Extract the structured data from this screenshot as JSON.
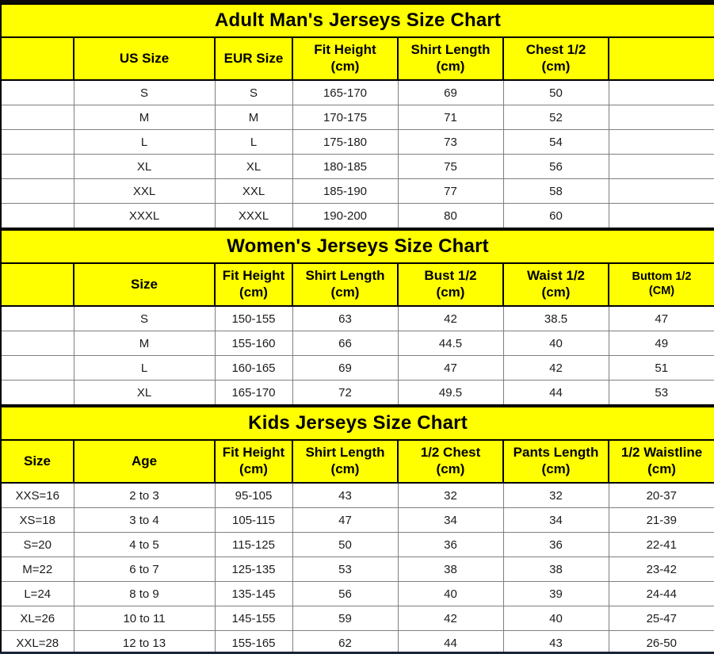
{
  "colors": {
    "header_bg": "#FFFF00",
    "title_text": "#000000",
    "grid_line": "#7F7F7F",
    "section_border": "#000000",
    "bottom_bar": "#1A2438",
    "data_text": "#1C1C1C"
  },
  "tables": [
    {
      "title": "Adult Man's Jerseys Size Chart",
      "headers": [
        "",
        "US Size",
        "EUR Size",
        "Fit Height\n(cm)",
        "Shirt Length\n(cm)",
        "Chest 1/2\n(cm)",
        ""
      ],
      "rows": [
        [
          "",
          "S",
          "S",
          "165-170",
          "69",
          "50",
          ""
        ],
        [
          "",
          "M",
          "M",
          "170-175",
          "71",
          "52",
          ""
        ],
        [
          "",
          "L",
          "L",
          "175-180",
          "73",
          "54",
          ""
        ],
        [
          "",
          "XL",
          "XL",
          "180-185",
          "75",
          "56",
          ""
        ],
        [
          "",
          "XXL",
          "XXL",
          "185-190",
          "77",
          "58",
          ""
        ],
        [
          "",
          "XXXL",
          "XXXL",
          "190-200",
          "80",
          "60",
          ""
        ]
      ]
    },
    {
      "title": "Women's Jerseys Size Chart",
      "headers": [
        "",
        "Size",
        "Fit Height\n(cm)",
        "Shirt Length\n(cm)",
        "Bust 1/2\n(cm)",
        "Waist 1/2\n(cm)",
        "Buttom 1/2\n(CM)"
      ],
      "rows": [
        [
          "",
          "S",
          "150-155",
          "63",
          "42",
          "38.5",
          "47"
        ],
        [
          "",
          "M",
          "155-160",
          "66",
          "44.5",
          "40",
          "49"
        ],
        [
          "",
          "L",
          "160-165",
          "69",
          "47",
          "42",
          "51"
        ],
        [
          "",
          "XL",
          "165-170",
          "72",
          "49.5",
          "44",
          "53"
        ]
      ]
    },
    {
      "title": "Kids Jerseys Size Chart",
      "headers": [
        "Size",
        "Age",
        "Fit Height\n(cm)",
        "Shirt Length\n(cm)",
        "1/2 Chest\n(cm)",
        "Pants Length\n(cm)",
        "1/2 Waistline\n(cm)"
      ],
      "rows": [
        [
          "XXS=16",
          "2 to 3",
          "95-105",
          "43",
          "32",
          "32",
          "20-37"
        ],
        [
          "XS=18",
          "3 to 4",
          "105-115",
          "47",
          "34",
          "34",
          "21-39"
        ],
        [
          "S=20",
          "4 to 5",
          "115-125",
          "50",
          "36",
          "36",
          "22-41"
        ],
        [
          "M=22",
          "6 to 7",
          "125-135",
          "53",
          "38",
          "38",
          "23-42"
        ],
        [
          "L=24",
          "8 to 9",
          "135-145",
          "56",
          "40",
          "39",
          "24-44"
        ],
        [
          "XL=26",
          "10 to 11",
          "145-155",
          "59",
          "42",
          "40",
          "25-47"
        ],
        [
          "XXL=28",
          "12 to 13",
          "155-165",
          "62",
          "44",
          "43",
          "26-50"
        ]
      ]
    }
  ]
}
